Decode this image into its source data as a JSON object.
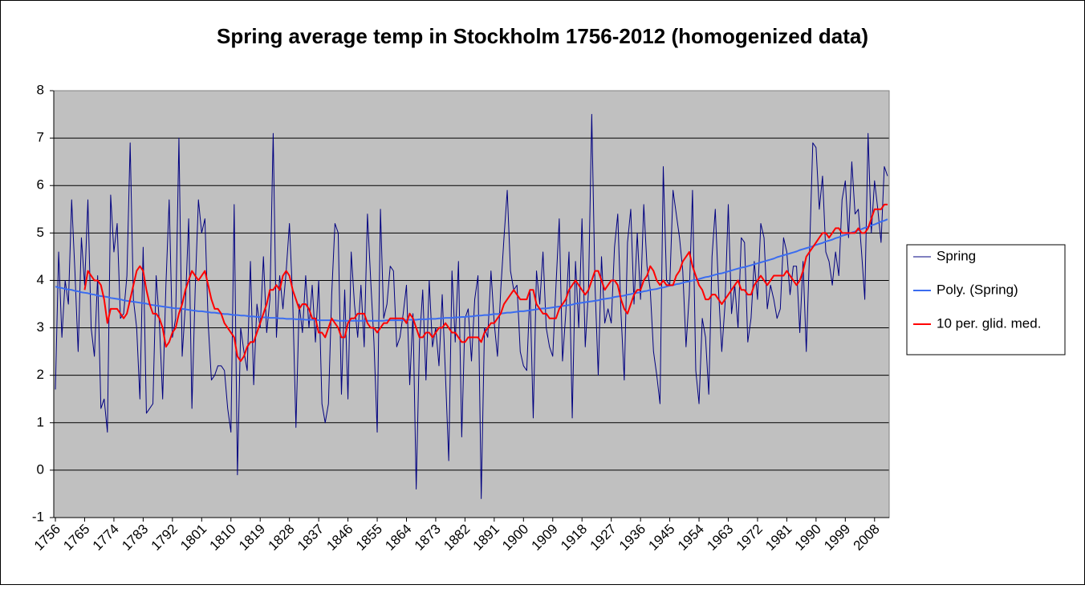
{
  "chart_data": {
    "type": "line",
    "title": "Spring average temp in Stockholm 1756-2012 (homogenized data)",
    "categories": [
      "1756",
      null,
      null,
      null,
      null,
      null,
      null,
      null,
      null,
      "1765",
      null,
      null,
      null,
      null,
      null,
      null,
      null,
      null,
      "1774",
      null,
      null,
      null,
      null,
      null,
      null,
      null,
      null,
      "1783",
      null,
      null,
      null,
      null,
      null,
      null,
      null,
      null,
      "1792",
      null,
      null,
      null,
      null,
      null,
      null,
      null,
      null,
      "1801",
      null,
      null,
      null,
      null,
      null,
      null,
      null,
      null,
      "1810",
      null,
      null,
      null,
      null,
      null,
      null,
      null,
      null,
      "1819",
      null,
      null,
      null,
      null,
      null,
      null,
      null,
      null,
      "1828",
      null,
      null,
      null,
      null,
      null,
      null,
      null,
      null,
      "1837",
      null,
      null,
      null,
      null,
      null,
      null,
      null,
      null,
      "1846",
      null,
      null,
      null,
      null,
      null,
      null,
      null,
      null,
      "1855",
      null,
      null,
      null,
      null,
      null,
      null,
      null,
      null,
      "1864",
      null,
      null,
      null,
      null,
      null,
      null,
      null,
      null,
      "1873",
      null,
      null,
      null,
      null,
      null,
      null,
      null,
      null,
      "1882",
      null,
      null,
      null,
      null,
      null,
      null,
      null,
      null,
      "1891",
      null,
      null,
      null,
      null,
      null,
      null,
      null,
      null,
      "1900",
      null,
      null,
      null,
      null,
      null,
      null,
      null,
      null,
      "1909",
      null,
      null,
      null,
      null,
      null,
      null,
      null,
      null,
      "1918",
      null,
      null,
      null,
      null,
      null,
      null,
      null,
      null,
      "1927",
      null,
      null,
      null,
      null,
      null,
      null,
      null,
      null,
      "1936",
      null,
      null,
      null,
      null,
      null,
      null,
      null,
      null,
      "1945",
      null,
      null,
      null,
      null,
      null,
      null,
      null,
      null,
      "1954",
      null,
      null,
      null,
      null,
      null,
      null,
      null,
      null,
      "1963",
      null,
      null,
      null,
      null,
      null,
      null,
      null,
      null,
      "1972",
      null,
      null,
      null,
      null,
      null,
      null,
      null,
      null,
      "1981",
      null,
      null,
      null,
      null,
      null,
      null,
      null,
      null,
      "1990",
      null,
      null,
      null,
      null,
      null,
      null,
      null,
      null,
      "1999",
      null,
      null,
      null,
      null,
      null,
      null,
      null,
      null,
      "2008",
      null,
      null,
      null,
      null
    ],
    "series": [
      {
        "name": "Spring",
        "color": "#000080",
        "values": [
          1.7,
          4.6,
          2.8,
          4.0,
          3.5,
          5.7,
          4.2,
          2.5,
          4.9,
          3.9,
          5.7,
          3.0,
          2.4,
          4.1,
          1.3,
          1.5,
          0.8,
          5.8,
          4.6,
          5.2,
          3.2,
          3.3,
          4.1,
          6.9,
          3.6,
          3.0,
          1.5,
          4.7,
          1.2,
          1.3,
          1.4,
          4.1,
          3.1,
          1.5,
          3.9,
          5.7,
          2.8,
          3.2,
          7.0,
          2.4,
          3.5,
          5.3,
          1.3,
          3.8,
          5.7,
          5.0,
          5.3,
          3.1,
          1.9,
          2.0,
          2.2,
          2.2,
          2.1,
          1.3,
          0.8,
          5.6,
          -0.1,
          3.0,
          2.5,
          2.1,
          4.4,
          1.8,
          3.5,
          3.0,
          4.5,
          2.9,
          3.6,
          7.1,
          2.8,
          4.1,
          3.4,
          4.2,
          5.2,
          3.6,
          0.9,
          3.5,
          2.9,
          4.1,
          3.0,
          3.9,
          2.7,
          4.0,
          1.4,
          1.0,
          1.4,
          3.7,
          5.2,
          5.0,
          1.6,
          3.8,
          1.5,
          4.6,
          3.5,
          2.8,
          3.9,
          2.6,
          5.4,
          4.0,
          2.7,
          0.8,
          5.5,
          3.2,
          3.5,
          4.3,
          4.2,
          2.6,
          2.8,
          3.3,
          3.9,
          1.8,
          3.3,
          -0.4,
          2.7,
          3.8,
          1.9,
          4.0,
          2.6,
          3.0,
          2.2,
          3.7,
          2.0,
          0.2,
          4.2,
          2.7,
          4.4,
          0.7,
          3.2,
          3.4,
          2.3,
          3.6,
          4.1,
          -0.6,
          3.0,
          2.8,
          4.2,
          3.1,
          2.4,
          3.8,
          4.9,
          5.9,
          4.2,
          3.8,
          3.9,
          2.5,
          2.2,
          2.1,
          3.8,
          1.1,
          4.2,
          3.5,
          4.6,
          3.0,
          2.6,
          2.4,
          3.9,
          5.3,
          2.3,
          3.3,
          4.6,
          1.1,
          4.4,
          3.0,
          5.3,
          2.6,
          3.8,
          7.5,
          3.9,
          2.0,
          4.5,
          3.1,
          3.4,
          3.1,
          4.7,
          5.4,
          3.3,
          1.9,
          4.8,
          5.5,
          3.5,
          5.0,
          3.6,
          5.6,
          4.3,
          3.8,
          2.5,
          2.0,
          1.4,
          6.4,
          4.0,
          3.9,
          5.9,
          5.4,
          4.9,
          4.2,
          2.6,
          3.7,
          5.9,
          2.1,
          1.4,
          3.2,
          2.8,
          1.6,
          4.5,
          5.5,
          3.8,
          2.5,
          3.5,
          5.6,
          3.3,
          3.9,
          3.0,
          4.9,
          4.8,
          2.7,
          3.2,
          4.4,
          3.6,
          5.2,
          4.9,
          3.4,
          3.9,
          3.6,
          3.2,
          3.4,
          4.9,
          4.6,
          3.7,
          4.3,
          4.3,
          2.9,
          4.4,
          2.5,
          4.6,
          6.9,
          6.8,
          5.5,
          6.2,
          4.6,
          4.4,
          3.9,
          4.6,
          4.1,
          5.7,
          6.1,
          4.9,
          6.5,
          5.4,
          5.5,
          4.6,
          3.6,
          7.1,
          5.0,
          6.1,
          5.5,
          4.8,
          6.4,
          6.2
        ]
      },
      {
        "name": "Poly. (Spring)",
        "color": "#3a6cf0",
        "values": [
          3.87,
          3.85,
          3.84,
          3.82,
          3.81,
          3.8,
          3.78,
          3.77,
          3.75,
          3.74,
          3.73,
          3.71,
          3.7,
          3.68,
          3.67,
          3.66,
          3.65,
          3.63,
          3.62,
          3.61,
          3.6,
          3.58,
          3.57,
          3.56,
          3.55,
          3.54,
          3.53,
          3.52,
          3.51,
          3.49,
          3.48,
          3.47,
          3.46,
          3.45,
          3.44,
          3.43,
          3.42,
          3.41,
          3.41,
          3.4,
          3.39,
          3.38,
          3.37,
          3.36,
          3.35,
          3.35,
          3.34,
          3.33,
          3.32,
          3.32,
          3.31,
          3.3,
          3.29,
          3.29,
          3.28,
          3.27,
          3.27,
          3.26,
          3.26,
          3.25,
          3.24,
          3.24,
          3.23,
          3.23,
          3.22,
          3.22,
          3.21,
          3.21,
          3.21,
          3.2,
          3.2,
          3.19,
          3.19,
          3.19,
          3.18,
          3.18,
          3.18,
          3.17,
          3.17,
          3.17,
          3.17,
          3.16,
          3.16,
          3.16,
          3.16,
          3.16,
          3.16,
          3.15,
          3.15,
          3.15,
          3.15,
          3.15,
          3.15,
          3.15,
          3.15,
          3.15,
          3.15,
          3.15,
          3.15,
          3.15,
          3.15,
          3.15,
          3.16,
          3.16,
          3.16,
          3.16,
          3.16,
          3.16,
          3.17,
          3.17,
          3.17,
          3.17,
          3.18,
          3.18,
          3.18,
          3.19,
          3.19,
          3.19,
          3.2,
          3.2,
          3.21,
          3.21,
          3.21,
          3.22,
          3.22,
          3.23,
          3.23,
          3.24,
          3.24,
          3.25,
          3.26,
          3.26,
          3.27,
          3.27,
          3.28,
          3.29,
          3.29,
          3.3,
          3.31,
          3.32,
          3.32,
          3.33,
          3.34,
          3.35,
          3.35,
          3.36,
          3.37,
          3.38,
          3.39,
          3.4,
          3.41,
          3.41,
          3.42,
          3.43,
          3.44,
          3.45,
          3.46,
          3.47,
          3.48,
          3.49,
          3.51,
          3.52,
          3.53,
          3.54,
          3.55,
          3.56,
          3.57,
          3.58,
          3.6,
          3.61,
          3.62,
          3.63,
          3.65,
          3.66,
          3.67,
          3.68,
          3.7,
          3.71,
          3.73,
          3.74,
          3.75,
          3.77,
          3.78,
          3.8,
          3.81,
          3.82,
          3.84,
          3.85,
          3.87,
          3.89,
          3.9,
          3.92,
          3.93,
          3.95,
          3.97,
          3.98,
          4.0,
          4.01,
          4.03,
          4.05,
          4.07,
          4.08,
          4.1,
          4.12,
          4.14,
          4.15,
          4.17,
          4.19,
          4.21,
          4.23,
          4.25,
          4.27,
          4.28,
          4.3,
          4.32,
          4.34,
          4.36,
          4.38,
          4.4,
          4.42,
          4.44,
          4.46,
          4.49,
          4.51,
          4.53,
          4.55,
          4.57,
          4.59,
          4.61,
          4.64,
          4.66,
          4.68,
          4.7,
          4.72,
          4.75,
          4.77,
          4.79,
          4.82,
          4.84,
          4.86,
          4.89,
          4.91,
          4.94,
          4.96,
          4.98,
          5.01,
          5.03,
          5.06,
          5.08,
          5.11,
          5.13,
          5.16,
          5.18,
          5.21,
          5.24,
          5.26,
          5.29
        ]
      },
      {
        "name": "10 per. glid. med.",
        "color": "#ff0000",
        "values": [
          null,
          null,
          null,
          null,
          null,
          null,
          null,
          null,
          null,
          3.8,
          4.2,
          4.1,
          4.0,
          4.0,
          3.9,
          3.6,
          3.1,
          3.4,
          3.4,
          3.4,
          3.3,
          3.2,
          3.3,
          3.6,
          3.9,
          4.2,
          4.3,
          4.2,
          3.8,
          3.5,
          3.3,
          3.3,
          3.2,
          3.0,
          2.6,
          2.7,
          2.9,
          3.0,
          3.3,
          3.5,
          3.8,
          4.0,
          4.2,
          4.1,
          4.0,
          4.1,
          4.2,
          3.9,
          3.6,
          3.4,
          3.4,
          3.3,
          3.1,
          3.0,
          2.9,
          2.8,
          2.4,
          2.3,
          2.4,
          2.6,
          2.7,
          2.7,
          2.9,
          3.1,
          3.3,
          3.5,
          3.8,
          3.8,
          3.9,
          3.8,
          4.1,
          4.2,
          4.1,
          3.8,
          3.6,
          3.4,
          3.5,
          3.5,
          3.4,
          3.2,
          3.2,
          2.9,
          2.9,
          2.8,
          3.0,
          3.2,
          3.1,
          3.0,
          2.8,
          2.8,
          3.1,
          3.2,
          3.2,
          3.3,
          3.3,
          3.3,
          3.1,
          3.0,
          3.0,
          2.9,
          3.0,
          3.1,
          3.1,
          3.2,
          3.2,
          3.2,
          3.2,
          3.2,
          3.1,
          3.3,
          3.2,
          3.0,
          2.8,
          2.8,
          2.9,
          2.9,
          2.8,
          2.9,
          3.0,
          3.0,
          3.1,
          3.0,
          2.9,
          2.9,
          2.8,
          2.7,
          2.7,
          2.8,
          2.8,
          2.8,
          2.8,
          2.7,
          2.9,
          3.0,
          3.1,
          3.1,
          3.2,
          3.3,
          3.5,
          3.6,
          3.7,
          3.8,
          3.7,
          3.6,
          3.6,
          3.6,
          3.8,
          3.8,
          3.5,
          3.4,
          3.3,
          3.3,
          3.2,
          3.2,
          3.2,
          3.4,
          3.5,
          3.6,
          3.8,
          3.9,
          4.0,
          3.9,
          3.8,
          3.7,
          3.8,
          4.0,
          4.2,
          4.2,
          4.0,
          3.8,
          3.9,
          4.0,
          4.0,
          3.9,
          3.6,
          3.4,
          3.3,
          3.5,
          3.7,
          3.8,
          3.8,
          4.0,
          4.1,
          4.3,
          4.2,
          4.0,
          3.9,
          4.0,
          3.9,
          3.9,
          3.9,
          4.1,
          4.2,
          4.4,
          4.5,
          4.6,
          4.3,
          4.1,
          3.9,
          3.8,
          3.6,
          3.6,
          3.7,
          3.7,
          3.6,
          3.5,
          3.6,
          3.7,
          3.8,
          3.9,
          4.0,
          3.8,
          3.8,
          3.7,
          3.7,
          3.9,
          4.0,
          4.1,
          4.0,
          3.9,
          4.0,
          4.1,
          4.1,
          4.1,
          4.1,
          4.2,
          4.1,
          4.0,
          3.9,
          4.0,
          4.2,
          4.5,
          4.6,
          4.7,
          4.8,
          4.9,
          5.0,
          5.0,
          4.9,
          5.0,
          5.1,
          5.1,
          5.0,
          5.0,
          5.0,
          5.0,
          5.0,
          5.1,
          5.0,
          5.0,
          5.1,
          5.3,
          5.5,
          5.5,
          5.5,
          5.6,
          5.6
        ]
      }
    ],
    "ylim": [
      -1,
      8
    ],
    "yticks": [
      -1,
      0,
      1,
      2,
      3,
      4,
      5,
      6,
      7,
      8
    ],
    "grid": true,
    "plot_background": "#c0c0c0",
    "legend": "right"
  }
}
